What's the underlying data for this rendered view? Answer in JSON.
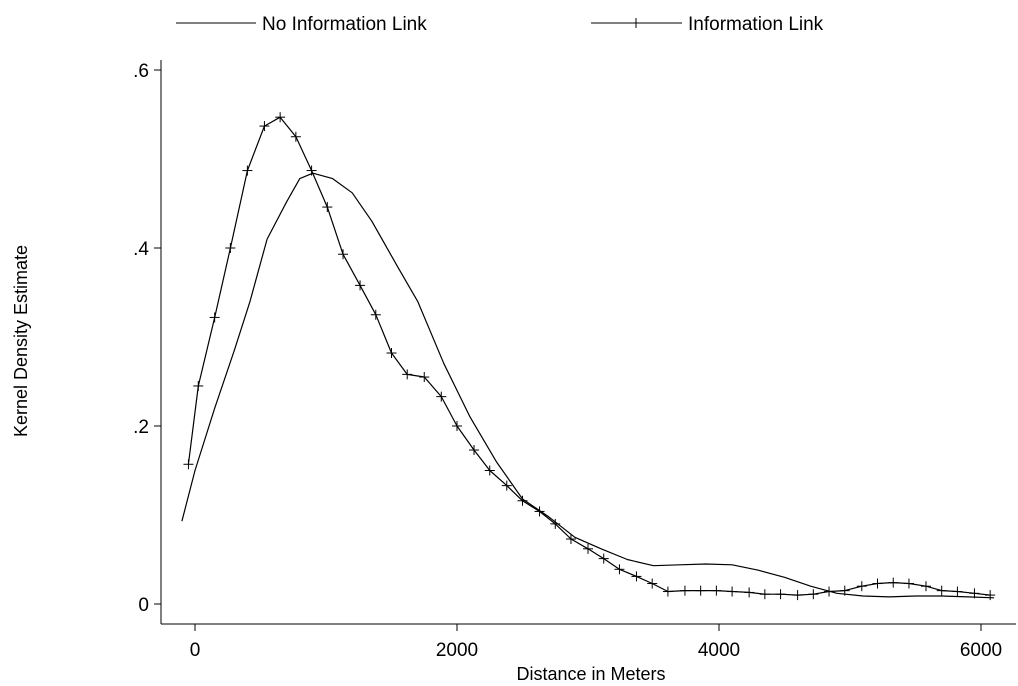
{
  "chart_data": {
    "type": "line",
    "title": "",
    "xlabel": "Distance in Meters",
    "ylabel": "Kernel Density Estimate",
    "xlim": [
      -300,
      6200
    ],
    "ylim": [
      -0.02,
      0.6
    ],
    "xticks": [
      0,
      2000,
      4000,
      6000
    ],
    "xtick_labels": [
      "0",
      "2000",
      "4000",
      "6000"
    ],
    "yticks": [
      0,
      0.2,
      0.4,
      0.6
    ],
    "ytick_labels": [
      "0",
      ".2",
      ".4",
      ".6"
    ],
    "grid": false,
    "legend_position": "top",
    "colors": {
      "line": "#000000",
      "background": "#ffffff"
    },
    "series": [
      {
        "name": "No Information Link",
        "marker": "none",
        "x": [
          -100,
          0,
          150,
          300,
          420,
          550,
          700,
          800,
          900,
          1050,
          1200,
          1350,
          1550,
          1700,
          1900,
          2100,
          2300,
          2500,
          2700,
          2900,
          3100,
          3300,
          3500,
          3700,
          3900,
          4100,
          4300,
          4500,
          4700,
          4900,
          5100,
          5300,
          5500,
          5700,
          5900,
          6100
        ],
        "y": [
          0.093,
          0.15,
          0.22,
          0.285,
          0.34,
          0.41,
          0.452,
          0.478,
          0.484,
          0.478,
          0.462,
          0.43,
          0.378,
          0.34,
          0.27,
          0.21,
          0.16,
          0.118,
          0.098,
          0.075,
          0.062,
          0.05,
          0.043,
          0.044,
          0.045,
          0.044,
          0.038,
          0.03,
          0.02,
          0.012,
          0.009,
          0.008,
          0.009,
          0.009,
          0.008,
          0.007
        ]
      },
      {
        "name": "Information Link",
        "marker": "plus",
        "x": [
          -50,
          25,
          150,
          270,
          400,
          530,
          650,
          770,
          890,
          1010,
          1130,
          1260,
          1380,
          1500,
          1620,
          1750,
          1880,
          2000,
          2130,
          2250,
          2380,
          2500,
          2630,
          2750,
          2870,
          3000,
          3120,
          3240,
          3370,
          3490,
          3610,
          3740,
          3860,
          3980,
          4100,
          4230,
          4350,
          4470,
          4600,
          4720,
          4840,
          4960,
          5090,
          5210,
          5330,
          5450,
          5580,
          5700,
          5820,
          5950,
          6070
        ],
        "y": [
          0.157,
          0.245,
          0.322,
          0.4,
          0.487,
          0.537,
          0.547,
          0.525,
          0.487,
          0.446,
          0.393,
          0.358,
          0.325,
          0.282,
          0.258,
          0.255,
          0.233,
          0.2,
          0.173,
          0.15,
          0.133,
          0.116,
          0.104,
          0.09,
          0.073,
          0.062,
          0.051,
          0.039,
          0.031,
          0.023,
          0.014,
          0.015,
          0.015,
          0.015,
          0.014,
          0.013,
          0.011,
          0.011,
          0.01,
          0.011,
          0.014,
          0.015,
          0.02,
          0.023,
          0.024,
          0.023,
          0.02,
          0.015,
          0.014,
          0.012,
          0.01
        ]
      }
    ]
  }
}
